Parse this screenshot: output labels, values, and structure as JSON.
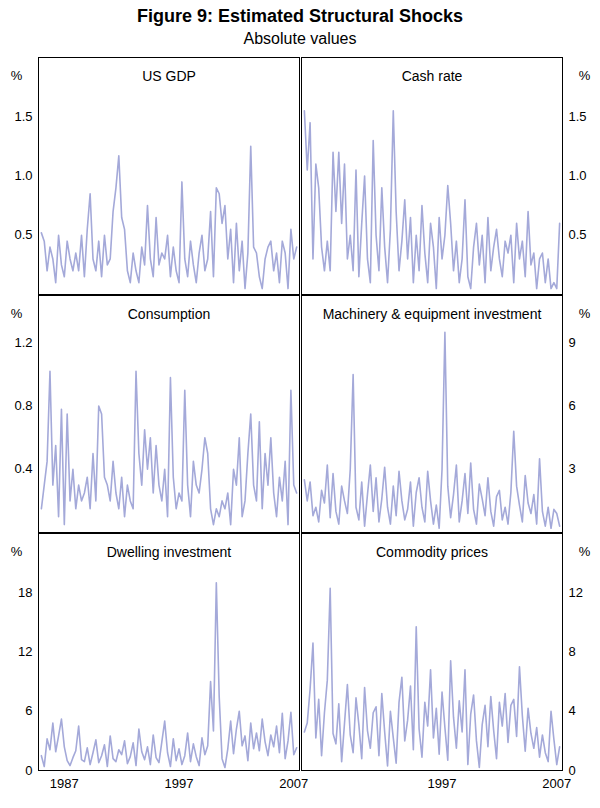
{
  "title": "Figure 9: Estimated Structural Shocks",
  "subtitle": "Absolute values",
  "chart_data": [
    {
      "type": "line",
      "title": "US GDP",
      "y_label": "%",
      "color": "#a4a9d9",
      "tick_labels": "y",
      "xlim": [
        1984.75,
        2007.5
      ],
      "ylim": [
        0,
        2
      ],
      "yticks": [
        0.5,
        {
          "value": 1,
          "label": "1.0"
        },
        1.5
      ],
      "x": [
        1985,
        1985.25,
        1985.5,
        1985.75,
        1986,
        1986.25,
        1986.5,
        1986.75,
        1987,
        1987.25,
        1987.5,
        1987.75,
        1988,
        1988.25,
        1988.5,
        1988.75,
        1989,
        1989.25,
        1989.5,
        1989.75,
        1990,
        1990.25,
        1990.5,
        1990.75,
        1991,
        1991.25,
        1991.5,
        1991.75,
        1992,
        1992.25,
        1992.5,
        1992.75,
        1993,
        1993.25,
        1993.5,
        1993.75,
        1994,
        1994.25,
        1994.5,
        1994.75,
        1995,
        1995.25,
        1995.5,
        1995.75,
        1996,
        1996.25,
        1996.5,
        1996.75,
        1997,
        1997.25,
        1997.5,
        1997.75,
        1998,
        1998.25,
        1998.5,
        1998.75,
        1999,
        1999.25,
        1999.5,
        1999.75,
        2000,
        2000.25,
        2000.5,
        2000.75,
        2001,
        2001.25,
        2001.5,
        2001.75,
        2002,
        2002.25,
        2002.5,
        2002.75,
        2003,
        2003.25,
        2003.5,
        2003.75,
        2004,
        2004.25,
        2004.5,
        2004.75,
        2005,
        2005.25,
        2005.5,
        2005.75,
        2006,
        2006.25,
        2006.5,
        2006.75,
        2007,
        2007.25
      ],
      "values": [
        0.52,
        0.45,
        0.2,
        0.4,
        0.3,
        0.1,
        0.5,
        0.25,
        0.15,
        0.45,
        0.3,
        0.2,
        0.35,
        0.2,
        0.5,
        0.15,
        0.55,
        0.85,
        0.3,
        0.2,
        0.45,
        0.15,
        0.5,
        0.25,
        0.3,
        0.7,
        0.9,
        1.17,
        0.65,
        0.55,
        0.2,
        0.1,
        0.35,
        0.2,
        0.1,
        0.4,
        0.25,
        0.75,
        0.3,
        0.15,
        0.65,
        0.25,
        0.35,
        0.3,
        0.5,
        0.15,
        0.4,
        0.2,
        0.1,
        0.95,
        0.3,
        0.15,
        0.45,
        0.25,
        0.1,
        0.35,
        0.5,
        0.2,
        0.3,
        0.7,
        0.15,
        0.9,
        0.85,
        0.6,
        0.75,
        0.3,
        0.55,
        0.1,
        0.6,
        0.2,
        0.45,
        0.05,
        0.35,
        1.25,
        0.4,
        0.35,
        0.15,
        0.05,
        0.3,
        0.4,
        0.45,
        0.2,
        0.35,
        0.1,
        0.45,
        0.35,
        0.05,
        0.55,
        0.3,
        0.4
      ]
    },
    {
      "type": "line",
      "title": "Cash rate",
      "y_label": "%",
      "color": "#a4a9d9",
      "tick_labels": "y",
      "xlim": [
        1984.75,
        2007.5
      ],
      "ylim": [
        0,
        2
      ],
      "yticks": [
        0.5,
        {
          "value": 1,
          "label": "1.0"
        },
        1.5
      ],
      "x": [
        1985,
        1985.25,
        1985.5,
        1985.75,
        1986,
        1986.25,
        1986.5,
        1986.75,
        1987,
        1987.25,
        1987.5,
        1987.75,
        1988,
        1988.25,
        1988.5,
        1988.75,
        1989,
        1989.25,
        1989.5,
        1989.75,
        1990,
        1990.25,
        1990.5,
        1990.75,
        1991,
        1991.25,
        1991.5,
        1991.75,
        1992,
        1992.25,
        1992.5,
        1992.75,
        1993,
        1993.25,
        1993.5,
        1993.75,
        1994,
        1994.25,
        1994.5,
        1994.75,
        1995,
        1995.25,
        1995.5,
        1995.75,
        1996,
        1996.25,
        1996.5,
        1996.75,
        1997,
        1997.25,
        1997.5,
        1997.75,
        1998,
        1998.25,
        1998.5,
        1998.75,
        1999,
        1999.25,
        1999.5,
        1999.75,
        2000,
        2000.25,
        2000.5,
        2000.75,
        2001,
        2001.25,
        2001.5,
        2001.75,
        2002,
        2002.25,
        2002.5,
        2002.75,
        2003,
        2003.25,
        2003.5,
        2003.75,
        2004,
        2004.25,
        2004.5,
        2004.75,
        2005,
        2005.25,
        2005.5,
        2005.75,
        2006,
        2006.25,
        2006.5,
        2006.75,
        2007,
        2007.25
      ],
      "values": [
        1.55,
        1.05,
        1.45,
        0.3,
        1.1,
        0.9,
        0.4,
        0.2,
        0.45,
        0.2,
        1.2,
        0.7,
        1.2,
        0.6,
        1.1,
        0.3,
        0.5,
        0.2,
        1.05,
        0.15,
        0.6,
        1.0,
        0.3,
        0.1,
        1.3,
        0.5,
        0.2,
        0.9,
        0.4,
        0.1,
        0.55,
        1.55,
        0.7,
        0.2,
        0.45,
        0.8,
        0.3,
        0.65,
        0.1,
        0.5,
        0.2,
        0.75,
        0.35,
        0.1,
        0.6,
        0.4,
        0.05,
        0.65,
        0.3,
        0.5,
        0.92,
        0.6,
        0.2,
        0.45,
        0.1,
        0.3,
        0.8,
        0.15,
        0.05,
        0.4,
        0.6,
        0.25,
        0.5,
        0.1,
        0.65,
        0.2,
        0.4,
        0.55,
        0.3,
        0.15,
        0.45,
        0.35,
        0.5,
        0.1,
        0.6,
        0.3,
        0.45,
        0.15,
        0.7,
        0.25,
        0.35,
        0.05,
        0.3,
        0.35,
        0.1,
        0.3,
        0.05,
        0.1,
        0.05,
        0.6
      ]
    },
    {
      "type": "line",
      "title": "Consumption",
      "y_label": "%",
      "color": "#a4a9d9",
      "tick_labels": "y",
      "xlim": [
        1984.75,
        2007.5
      ],
      "ylim": [
        0,
        1.5
      ],
      "yticks": [
        0.4,
        0.8,
        1.2
      ],
      "x": [
        1985,
        1985.25,
        1985.5,
        1985.75,
        1986,
        1986.25,
        1986.5,
        1986.75,
        1987,
        1987.25,
        1987.5,
        1987.75,
        1988,
        1988.25,
        1988.5,
        1988.75,
        1989,
        1989.25,
        1989.5,
        1989.75,
        1990,
        1990.25,
        1990.5,
        1990.75,
        1991,
        1991.25,
        1991.5,
        1991.75,
        1992,
        1992.25,
        1992.5,
        1992.75,
        1993,
        1993.25,
        1993.5,
        1993.75,
        1994,
        1994.25,
        1994.5,
        1994.75,
        1995,
        1995.25,
        1995.5,
        1995.75,
        1996,
        1996.25,
        1996.5,
        1996.75,
        1997,
        1997.25,
        1997.5,
        1997.75,
        1998,
        1998.25,
        1998.5,
        1998.75,
        1999,
        1999.25,
        1999.5,
        1999.75,
        2000,
        2000.25,
        2000.5,
        2000.75,
        2001,
        2001.25,
        2001.5,
        2001.75,
        2002,
        2002.25,
        2002.5,
        2002.75,
        2003,
        2003.25,
        2003.5,
        2003.75,
        2004,
        2004.25,
        2004.5,
        2004.75,
        2005,
        2005.25,
        2005.5,
        2005.75,
        2006,
        2006.25,
        2006.5,
        2006.75,
        2007,
        2007.25
      ],
      "values": [
        0.15,
        0.3,
        0.45,
        1.02,
        0.3,
        0.55,
        0.1,
        0.78,
        0.05,
        0.75,
        0.2,
        0.4,
        0.15,
        0.3,
        0.2,
        0.25,
        0.35,
        0.15,
        0.5,
        0.2,
        0.8,
        0.75,
        0.35,
        0.3,
        0.2,
        0.45,
        0.25,
        0.15,
        0.35,
        0.1,
        0.3,
        0.2,
        0.15,
        1.02,
        0.5,
        0.3,
        0.65,
        0.4,
        0.6,
        0.25,
        0.55,
        0.3,
        0.2,
        0.4,
        0.1,
        0.98,
        0.35,
        0.15,
        0.25,
        0.2,
        0.9,
        0.3,
        0.1,
        0.45,
        0.3,
        0.25,
        0.4,
        0.6,
        0.5,
        0.15,
        0.05,
        0.15,
        0.1,
        0.2,
        0.15,
        0.25,
        0.05,
        0.4,
        0.3,
        0.6,
        0.1,
        0.2,
        0.5,
        0.75,
        0.3,
        0.2,
        0.7,
        0.15,
        0.5,
        0.3,
        0.6,
        0.25,
        0.1,
        0.35,
        0.2,
        0.45,
        0.05,
        0.9,
        0.3,
        0.25
      ]
    },
    {
      "type": "line",
      "title": "Machinery & equipment investment",
      "y_label": "%",
      "color": "#a4a9d9",
      "tick_labels": "y",
      "xlim": [
        1984.75,
        2007.5
      ],
      "ylim": [
        0,
        11.25
      ],
      "yticks": [
        3,
        6,
        9
      ],
      "x": [
        1985,
        1985.25,
        1985.5,
        1985.75,
        1986,
        1986.25,
        1986.5,
        1986.75,
        1987,
        1987.25,
        1987.5,
        1987.75,
        1988,
        1988.25,
        1988.5,
        1988.75,
        1989,
        1989.25,
        1989.5,
        1989.75,
        1990,
        1990.25,
        1990.5,
        1990.75,
        1991,
        1991.25,
        1991.5,
        1991.75,
        1992,
        1992.25,
        1992.5,
        1992.75,
        1993,
        1993.25,
        1993.5,
        1993.75,
        1994,
        1994.25,
        1994.5,
        1994.75,
        1995,
        1995.25,
        1995.5,
        1995.75,
        1996,
        1996.25,
        1996.5,
        1996.75,
        1997,
        1997.25,
        1997.5,
        1997.75,
        1998,
        1998.25,
        1998.5,
        1998.75,
        1999,
        1999.25,
        1999.5,
        1999.75,
        2000,
        2000.25,
        2000.5,
        2000.75,
        2001,
        2001.25,
        2001.5,
        2001.75,
        2002,
        2002.25,
        2002.5,
        2002.75,
        2003,
        2003.25,
        2003.5,
        2003.75,
        2004,
        2004.25,
        2004.5,
        2004.75,
        2005,
        2005.25,
        2005.5,
        2005.75,
        2006,
        2006.25,
        2006.5,
        2006.75,
        2007,
        2007.25
      ],
      "values": [
        2.5,
        1.5,
        2.4,
        0.8,
        1.2,
        0.5,
        2.0,
        1.4,
        3.2,
        0.7,
        2.8,
        1.0,
        0.4,
        2.2,
        1.5,
        0.9,
        3.0,
        7.5,
        1.2,
        0.6,
        2.4,
        0.3,
        1.8,
        3.2,
        1.0,
        2.6,
        0.5,
        1.6,
        3.1,
        1.2,
        0.4,
        2.2,
        0.8,
        2.9,
        1.5,
        0.6,
        1.1,
        2.4,
        0.3,
        1.9,
        2.6,
        1.2,
        0.5,
        2.9,
        1.5,
        0.4,
        1.3,
        0.2,
        3.0,
        9.5,
        2.2,
        0.7,
        1.8,
        3.2,
        0.5,
        1.5,
        2.8,
        0.9,
        3.3,
        1.1,
        0.4,
        2.3,
        1.6,
        0.8,
        2.6,
        1.0,
        0.3,
        1.7,
        2.0,
        0.6,
        1.2,
        0.4,
        1.9,
        4.8,
        2.2,
        1.3,
        0.5,
        2.7,
        1.4,
        0.9,
        1.8,
        0.4,
        3.5,
        1.0,
        0.3,
        1.2,
        0.2,
        1.1,
        0.9,
        0.3
      ]
    },
    {
      "type": "line",
      "title": "Dwelling investment",
      "y_label": "%",
      "color": "#a4a9d9",
      "xlim": [
        1984.75,
        2007.5
      ],
      "ylim": [
        0,
        24
      ],
      "yticks": [
        0,
        6,
        12,
        18
      ],
      "xticks": [
        1987,
        1997,
        2007
      ],
      "x": [
        1985,
        1985.25,
        1985.5,
        1985.75,
        1986,
        1986.25,
        1986.5,
        1986.75,
        1987,
        1987.25,
        1987.5,
        1987.75,
        1988,
        1988.25,
        1988.5,
        1988.75,
        1989,
        1989.25,
        1989.5,
        1989.75,
        1990,
        1990.25,
        1990.5,
        1990.75,
        1991,
        1991.25,
        1991.5,
        1991.75,
        1992,
        1992.25,
        1992.5,
        1992.75,
        1993,
        1993.25,
        1993.5,
        1993.75,
        1994,
        1994.25,
        1994.5,
        1994.75,
        1995,
        1995.25,
        1995.5,
        1995.75,
        1996,
        1996.25,
        1996.5,
        1996.75,
        1997,
        1997.25,
        1997.5,
        1997.75,
        1998,
        1998.25,
        1998.5,
        1998.75,
        1999,
        1999.25,
        1999.5,
        1999.75,
        2000,
        2000.25,
        2000.5,
        2000.75,
        2001,
        2001.25,
        2001.5,
        2001.75,
        2002,
        2002.25,
        2002.5,
        2002.75,
        2003,
        2003.25,
        2003.5,
        2003.75,
        2004,
        2004.25,
        2004.5,
        2004.75,
        2005,
        2005.25,
        2005.5,
        2005.75,
        2006,
        2006.25,
        2006.5,
        2006.75,
        2007,
        2007.25
      ],
      "values": [
        1.5,
        0.4,
        3.2,
        2.1,
        4.8,
        1.9,
        3.5,
        5.2,
        2.4,
        1.0,
        0.5,
        1.3,
        2.0,
        4.5,
        1.1,
        0.9,
        2.3,
        0.6,
        1.8,
        3.1,
        0.8,
        1.5,
        2.6,
        0.4,
        3.5,
        1.2,
        0.9,
        2.1,
        1.6,
        3.0,
        0.7,
        1.4,
        2.8,
        0.5,
        4.2,
        1.9,
        1.1,
        2.4,
        0.6,
        3.6,
        1.3,
        0.8,
        2.9,
        5.0,
        1.8,
        0.4,
        3.2,
        1.0,
        2.2,
        0.6,
        1.5,
        3.8,
        0.9,
        2.7,
        1.4,
        0.5,
        3.3,
        1.6,
        2.5,
        9.0,
        4.0,
        19.0,
        7.5,
        1.2,
        0.3,
        2.2,
        5.0,
        1.7,
        4.2,
        6.0,
        2.5,
        3.5,
        1.0,
        4.8,
        2.2,
        3.8,
        2.0,
        5.2,
        2.9,
        1.5,
        3.6,
        2.4,
        4.5,
        1.8,
        5.8,
        1.2,
        3.0,
        5.9,
        1.6,
        2.3
      ]
    },
    {
      "type": "line",
      "title": "Commodity prices",
      "y_label": "%",
      "color": "#a4a9d9",
      "xlim": [
        1984.75,
        2007.5
      ],
      "ylim": [
        0,
        16
      ],
      "yticks": [
        0,
        4,
        8,
        12
      ],
      "xticks": [
        1997,
        2007
      ],
      "x": [
        1985,
        1985.25,
        1985.5,
        1985.75,
        1986,
        1986.25,
        1986.5,
        1986.75,
        1987,
        1987.25,
        1987.5,
        1987.75,
        1988,
        1988.25,
        1988.5,
        1988.75,
        1989,
        1989.25,
        1989.5,
        1989.75,
        1990,
        1990.25,
        1990.5,
        1990.75,
        1991,
        1991.25,
        1991.5,
        1991.75,
        1992,
        1992.25,
        1992.5,
        1992.75,
        1993,
        1993.25,
        1993.5,
        1993.75,
        1994,
        1994.25,
        1994.5,
        1994.75,
        1995,
        1995.25,
        1995.5,
        1995.75,
        1996,
        1996.25,
        1996.5,
        1996.75,
        1997,
        1997.25,
        1997.5,
        1997.75,
        1998,
        1998.25,
        1998.5,
        1998.75,
        1999,
        1999.25,
        1999.5,
        1999.75,
        2000,
        2000.25,
        2000.5,
        2000.75,
        2001,
        2001.25,
        2001.5,
        2001.75,
        2002,
        2002.25,
        2002.5,
        2002.75,
        2003,
        2003.25,
        2003.5,
        2003.75,
        2004,
        2004.25,
        2004.5,
        2004.75,
        2005,
        2005.25,
        2005.5,
        2005.75,
        2006,
        2006.25,
        2006.5,
        2006.75,
        2007,
        2007.25
      ],
      "values": [
        2.6,
        3.2,
        5.5,
        8.6,
        2.2,
        4.8,
        1.0,
        3.9,
        6.1,
        12.3,
        2.5,
        1.8,
        4.5,
        0.6,
        3.2,
        5.8,
        2.4,
        1.2,
        4.9,
        3.1,
        0.8,
        5.6,
        2.7,
        1.5,
        3.9,
        4.3,
        1.0,
        5.2,
        2.6,
        0.3,
        4.0,
        2.2,
        0.5,
        4.6,
        6.3,
        2.0,
        3.4,
        5.7,
        1.4,
        9.7,
        2.8,
        0.9,
        4.6,
        3.0,
        6.8,
        2.2,
        4.2,
        1.1,
        5.3,
        2.9,
        0.7,
        7.4,
        3.6,
        1.5,
        4.7,
        2.6,
        6.8,
        0.4,
        3.8,
        5.1,
        2.0,
        0.2,
        3.1,
        4.4,
        1.6,
        5.0,
        2.7,
        0.8,
        4.6,
        3.0,
        5.2,
        1.9,
        4.4,
        4.8,
        2.3,
        7.0,
        3.7,
        1.3,
        4.2,
        2.5,
        1.5,
        2.9,
        0.9,
        2.4,
        1.2,
        0.6,
        4.0,
        2.1,
        0.4,
        1.6
      ]
    }
  ]
}
